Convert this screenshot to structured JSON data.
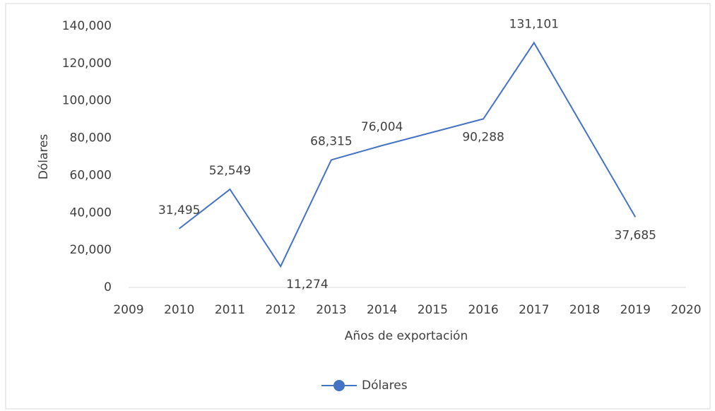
{
  "chart_data": {
    "type": "line",
    "x_label": "Años de exportación",
    "y_label": "Dólares",
    "x": [
      2010,
      2011,
      2012,
      2013,
      2014,
      2016,
      2017,
      2019
    ],
    "series": [
      {
        "name": "Dólares",
        "color": "#4472c4",
        "values": [
          31495,
          52549,
          11274,
          68315,
          76004,
          90288,
          131101,
          37685
        ],
        "value_labels": [
          "31,495",
          "52,549",
          "11,274",
          "68,315",
          "76,004",
          "90,288",
          "131,101",
          "37,685"
        ]
      }
    ],
    "xlim": [
      2009,
      2020
    ],
    "xticks": [
      2009,
      2010,
      2011,
      2012,
      2013,
      2014,
      2015,
      2016,
      2017,
      2018,
      2019,
      2020
    ],
    "ylim": [
      0,
      140000
    ],
    "yticks": [
      0,
      {
        "value": 20000,
        "label": "20,000"
      },
      {
        "value": 40000,
        "label": "40,000"
      },
      {
        "value": 60000,
        "label": "60,000"
      },
      {
        "value": 80000,
        "label": "80,000"
      },
      {
        "value": 100000,
        "label": "100,000"
      },
      {
        "value": 120000,
        "label": "120,000"
      },
      {
        "value": 140000,
        "label": "140,000"
      }
    ],
    "legend": "bottom"
  }
}
